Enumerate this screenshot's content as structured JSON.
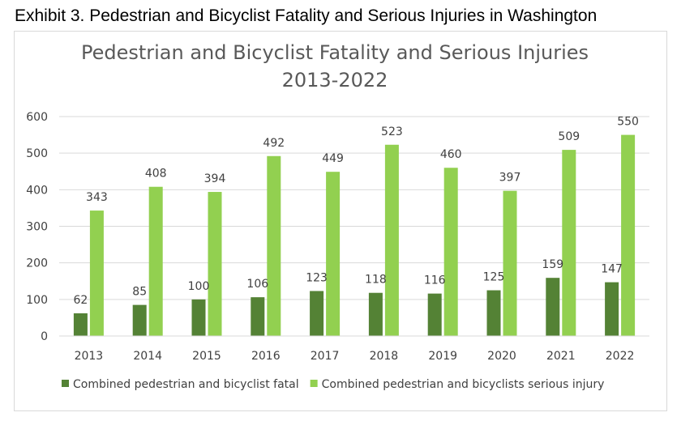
{
  "exhibit_caption": "Exhibit 3. Pedestrian and Bicyclist Fatality and Serious Injuries in Washington",
  "chart_data": {
    "type": "bar",
    "title": "Pedestrian and Bicyclist Fatality and Serious Injuries",
    "subtitle": "2013-2022",
    "xlabel": "",
    "ylabel": "",
    "categories": [
      "2013",
      "2014",
      "2015",
      "2016",
      "2017",
      "2018",
      "2019",
      "2020",
      "2021",
      "2022"
    ],
    "series": [
      {
        "name": "Combined pedestrian and bicyclist fatal",
        "color": "#548235",
        "values": [
          62,
          85,
          100,
          106,
          123,
          118,
          116,
          125,
          159,
          147
        ]
      },
      {
        "name": "Combined pedestrian and bicyclists serious injury",
        "color": "#92d050",
        "values": [
          343,
          408,
          394,
          492,
          449,
          523,
          460,
          397,
          509,
          550
        ]
      }
    ],
    "ylim": [
      0,
      600
    ],
    "yticks": [
      0,
      100,
      200,
      300,
      400,
      500,
      600
    ],
    "grid": true,
    "legend_position": "bottom",
    "data_labels": true
  }
}
